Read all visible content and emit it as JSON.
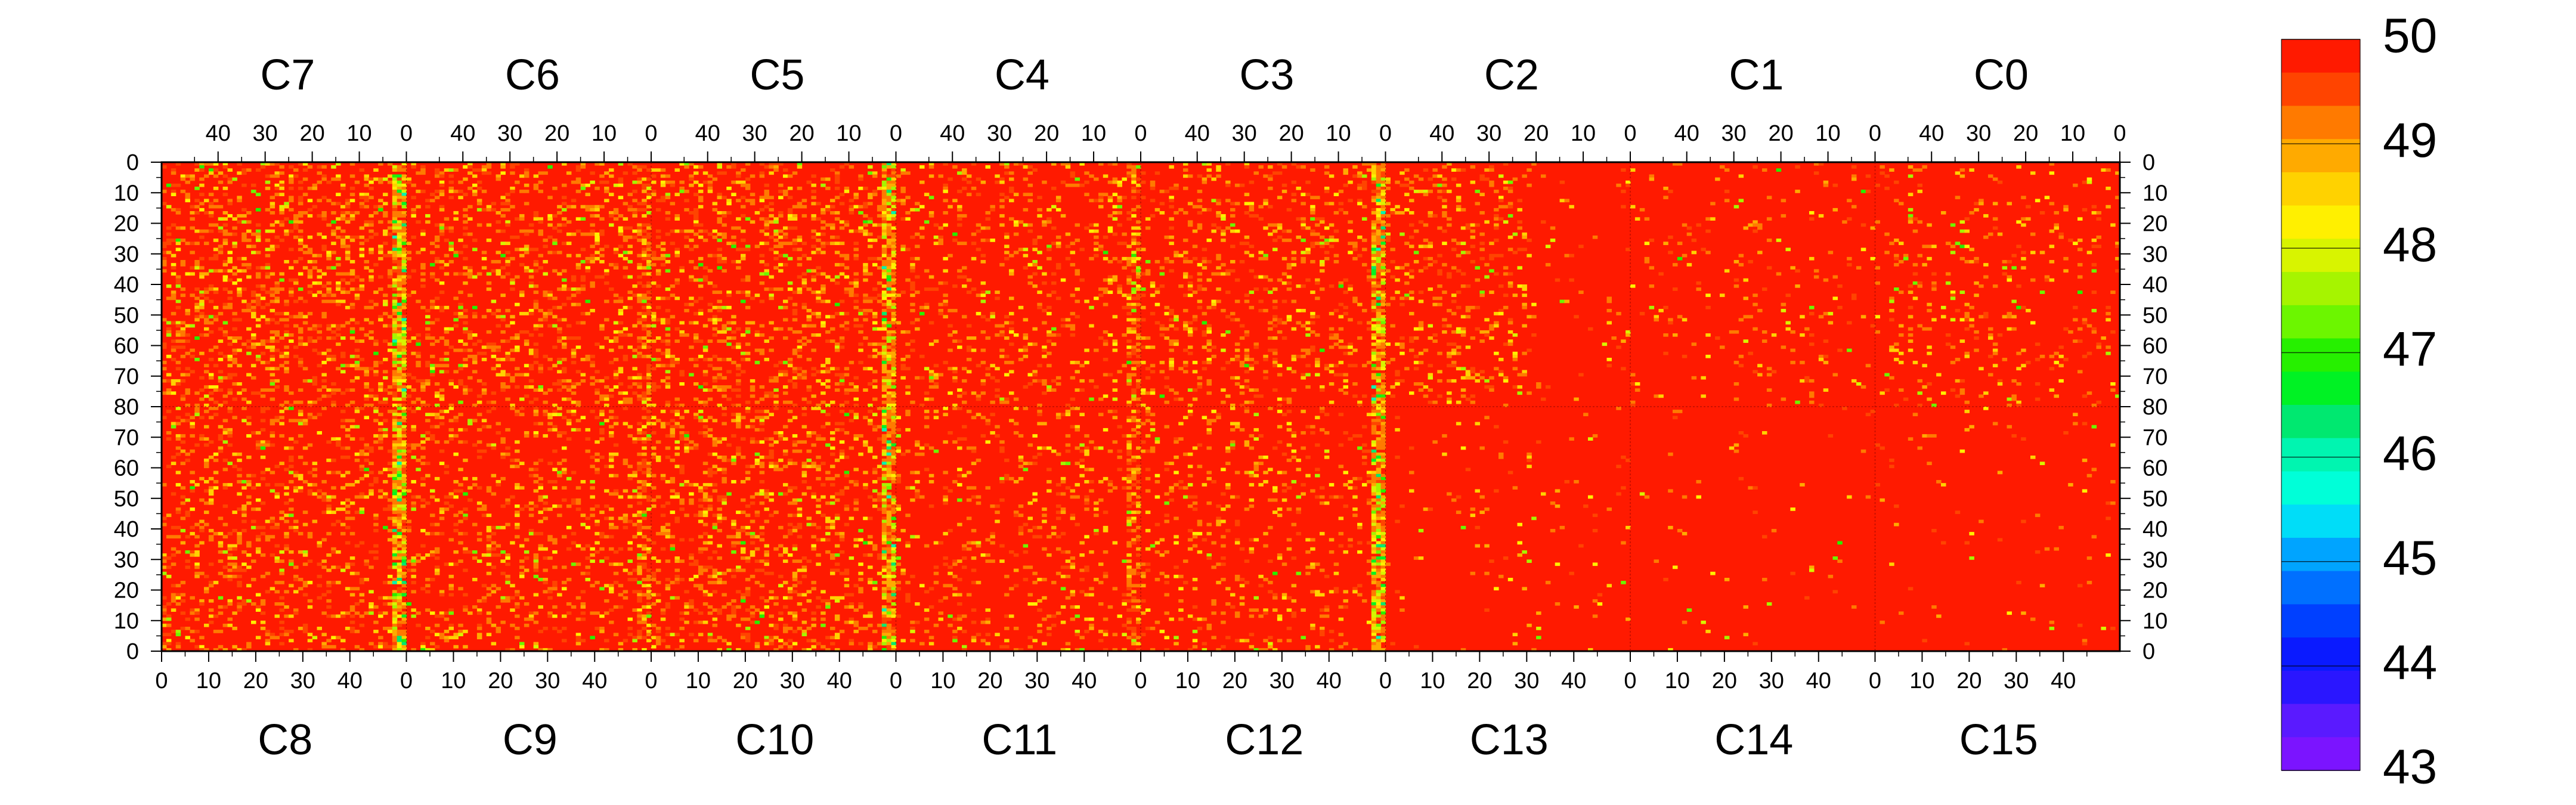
{
  "chart_data": {
    "type": "heatmap",
    "title": "",
    "xlabel": "",
    "ylabel": "",
    "top_chip_labels": [
      "C7",
      "C6",
      "C5",
      "C4",
      "C3",
      "C2",
      "C1",
      "C0"
    ],
    "bottom_chip_labels": [
      "C8",
      "C9",
      "C10",
      "C11",
      "C12",
      "C13",
      "C14",
      "C15"
    ],
    "top_x_tick_labels": [
      "40",
      "30",
      "20",
      "10",
      "0"
    ],
    "bottom_x_tick_labels": [
      "0",
      "10",
      "20",
      "30",
      "40"
    ],
    "y_tick_labels_top_half": [
      "0",
      "10",
      "20",
      "30",
      "40",
      "50",
      "60",
      "70",
      "80"
    ],
    "y_tick_labels_bottom_half": [
      "70",
      "60",
      "50",
      "40",
      "30",
      "20",
      "10",
      "0"
    ],
    "columns_per_chip": 52,
    "rows_per_half": 80,
    "xlim": [
      0,
      52
    ],
    "ylim": [
      0,
      80
    ],
    "zlim": [
      43,
      50
    ],
    "colorbar_tick_labels": [
      "50",
      "49",
      "48",
      "47",
      "46",
      "45",
      "44",
      "43"
    ],
    "colorbar_ticks": [
      50,
      49,
      48,
      47,
      46,
      45,
      44,
      43
    ],
    "colormap": [
      "#7b14ff",
      "#5a1aff",
      "#2a16ff",
      "#0a1aff",
      "#0040ff",
      "#0070ff",
      "#00a4ff",
      "#00ddf8",
      "#00ffd8",
      "#00f5b0",
      "#00e870",
      "#00f224",
      "#26f000",
      "#6cf600",
      "#a6f400",
      "#d8f400",
      "#fff000",
      "#ffd200",
      "#ffaa00",
      "#ff7a00",
      "#ff4400",
      "#ff1a00"
    ],
    "background_value": 50,
    "background_color": "#ff1a00",
    "grid": false,
    "legend": "colorbar-right",
    "description_values": {
      "typical_pixel_value": 50,
      "warm_speckle_range": [
        48.5,
        49.7
      ],
      "min_observed": 44.5,
      "low_value_column_stripes_at_chip_edges": [
        45.5,
        48.5
      ]
    }
  }
}
